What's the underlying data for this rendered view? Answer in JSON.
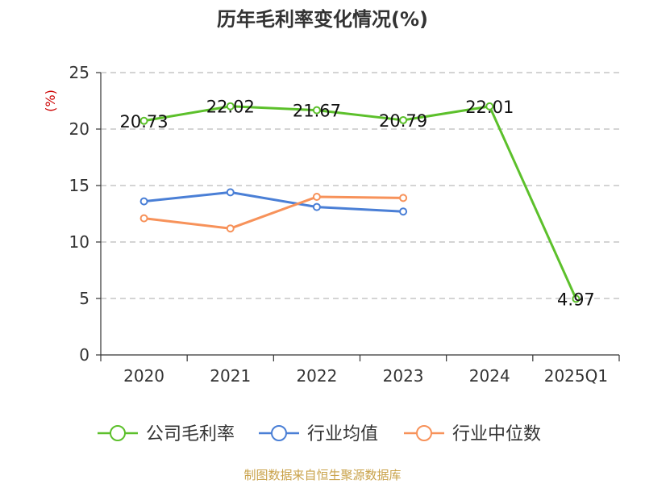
{
  "chart_data": {
    "type": "line",
    "title": "历年毛利率变化情况(%)",
    "ylabel": "(%)",
    "categories": [
      "2020",
      "2021",
      "2022",
      "2023",
      "2024",
      "2025Q1"
    ],
    "ylim": [
      0,
      25
    ],
    "yticks": [
      0,
      5,
      10,
      15,
      20,
      25
    ],
    "grid": true,
    "legend_position": "bottom",
    "series": [
      {
        "name": "公司毛利率",
        "color": "#5cc02b",
        "values": [
          20.73,
          22.02,
          21.67,
          20.79,
          22.01,
          4.97
        ],
        "labels": [
          "20.73",
          "22.02",
          "21.67",
          "20.79",
          "22.01",
          "4.97"
        ]
      },
      {
        "name": "行业均值",
        "color": "#4a7fd6",
        "values": [
          13.6,
          14.4,
          13.1,
          12.7,
          null,
          null
        ]
      },
      {
        "name": "行业中位数",
        "color": "#f7925a",
        "values": [
          12.1,
          11.2,
          14.0,
          13.9,
          null,
          null
        ]
      }
    ]
  },
  "source": "制图数据来自恒生聚源数据库"
}
